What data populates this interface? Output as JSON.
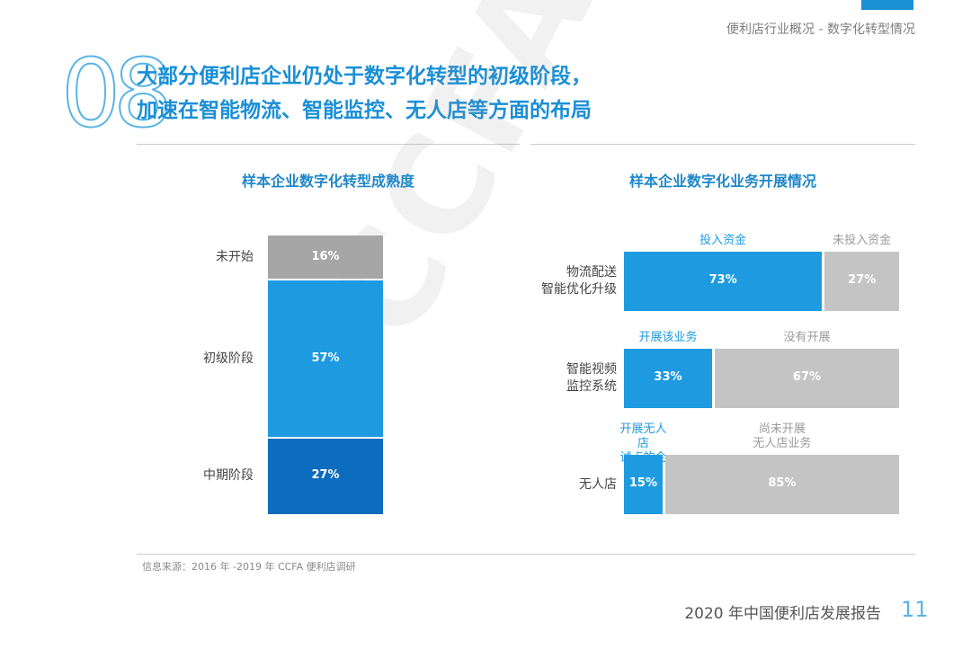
{
  "header": {
    "breadcrumb": "便利店行业概况 - 数字化转型情况",
    "section_number": "08",
    "headline_line1": "大部分便利店企业仍处于数字化转型的初级阶段，",
    "headline_line2": "加速在智能物流、智能监控、无人店等方面的布局"
  },
  "watermark": "CCFA",
  "chart_data": [
    {
      "type": "bar",
      "stacked": true,
      "orientation": "vertical",
      "title": "样本企业数字化转型成熟度",
      "categories": [
        "未开始",
        "初级阶段",
        "中期阶段"
      ],
      "values": [
        16,
        57,
        27
      ],
      "value_labels": [
        "16%",
        "57%",
        "27%"
      ],
      "colors": [
        "#a6a6a6",
        "#1e9be0",
        "#0c6cbe"
      ],
      "ylim": [
        0,
        100
      ]
    },
    {
      "type": "bar",
      "stacked": true,
      "orientation": "horizontal",
      "title": "样本企业数字化业务开展情况",
      "rows": [
        {
          "category": "物流配送\n智能优化升级",
          "segments": [
            {
              "name": "投入资金",
              "value": 73,
              "label": "73%",
              "color": "#1e9be0",
              "header_color": "#1e9be0"
            },
            {
              "name": "未投入资金",
              "value": 27,
              "label": "27%",
              "color": "#c4c4c4",
              "header_color": "#9a9a9a"
            }
          ]
        },
        {
          "category": "智能视频\n监控系统",
          "segments": [
            {
              "name": "开展该业务",
              "value": 33,
              "label": "33%",
              "color": "#1e9be0",
              "header_color": "#1e9be0"
            },
            {
              "name": "没有开展",
              "value": 67,
              "label": "67%",
              "color": "#c4c4c4",
              "header_color": "#9a9a9a"
            }
          ]
        },
        {
          "category": "无人店",
          "segments": [
            {
              "name": "开展无人店\n试点的企业",
              "value": 15,
              "label": "15%",
              "color": "#1e9be0",
              "header_color": "#1e9be0"
            },
            {
              "name": "尚未开展\n无人店业务",
              "value": 85,
              "label": "85%",
              "color": "#c4c4c4",
              "header_color": "#9a9a9a"
            }
          ]
        }
      ]
    }
  ],
  "footer": {
    "source": "信息来源：2016 年 -2019 年 CCFA 便利店调研",
    "report_title": "2020 年中国便利店发展报告",
    "page_number": "11"
  }
}
